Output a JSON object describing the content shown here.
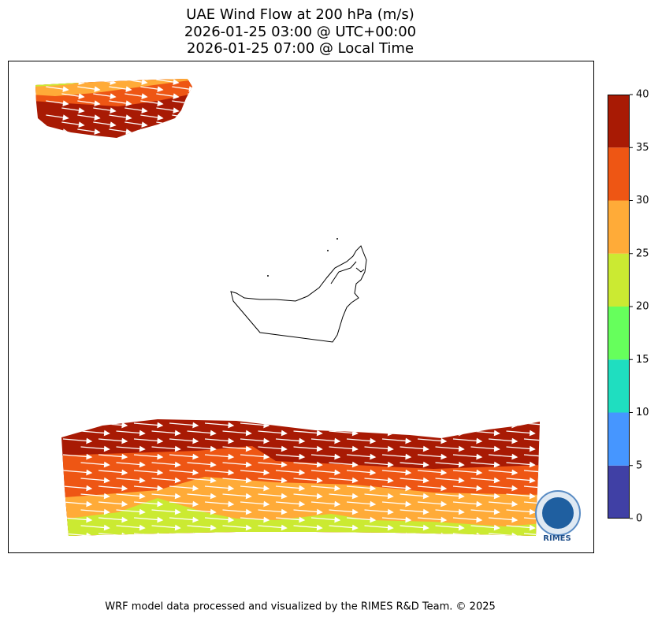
{
  "title": [
    "UAE Wind Flow at 200 hPa (m/s)",
    "2026-01-25 03:00 @ UTC+00:00",
    "2026-01-25 07:00 @ Local Time"
  ],
  "colorbar": {
    "lim": [
      0,
      40
    ],
    "ticks": [
      0,
      5,
      10,
      15,
      20,
      25,
      30,
      35,
      40
    ],
    "colors": [
      "#4040a5",
      "#4696ff",
      "#1fdec0",
      "#66ff5c",
      "#cbea32",
      "#ffab38",
      "#ee5614",
      "#a81a04"
    ]
  },
  "logo": "RIMES",
  "footer": "WRF model data processed and visualized by the RIMES R&D Team. © 2025"
}
